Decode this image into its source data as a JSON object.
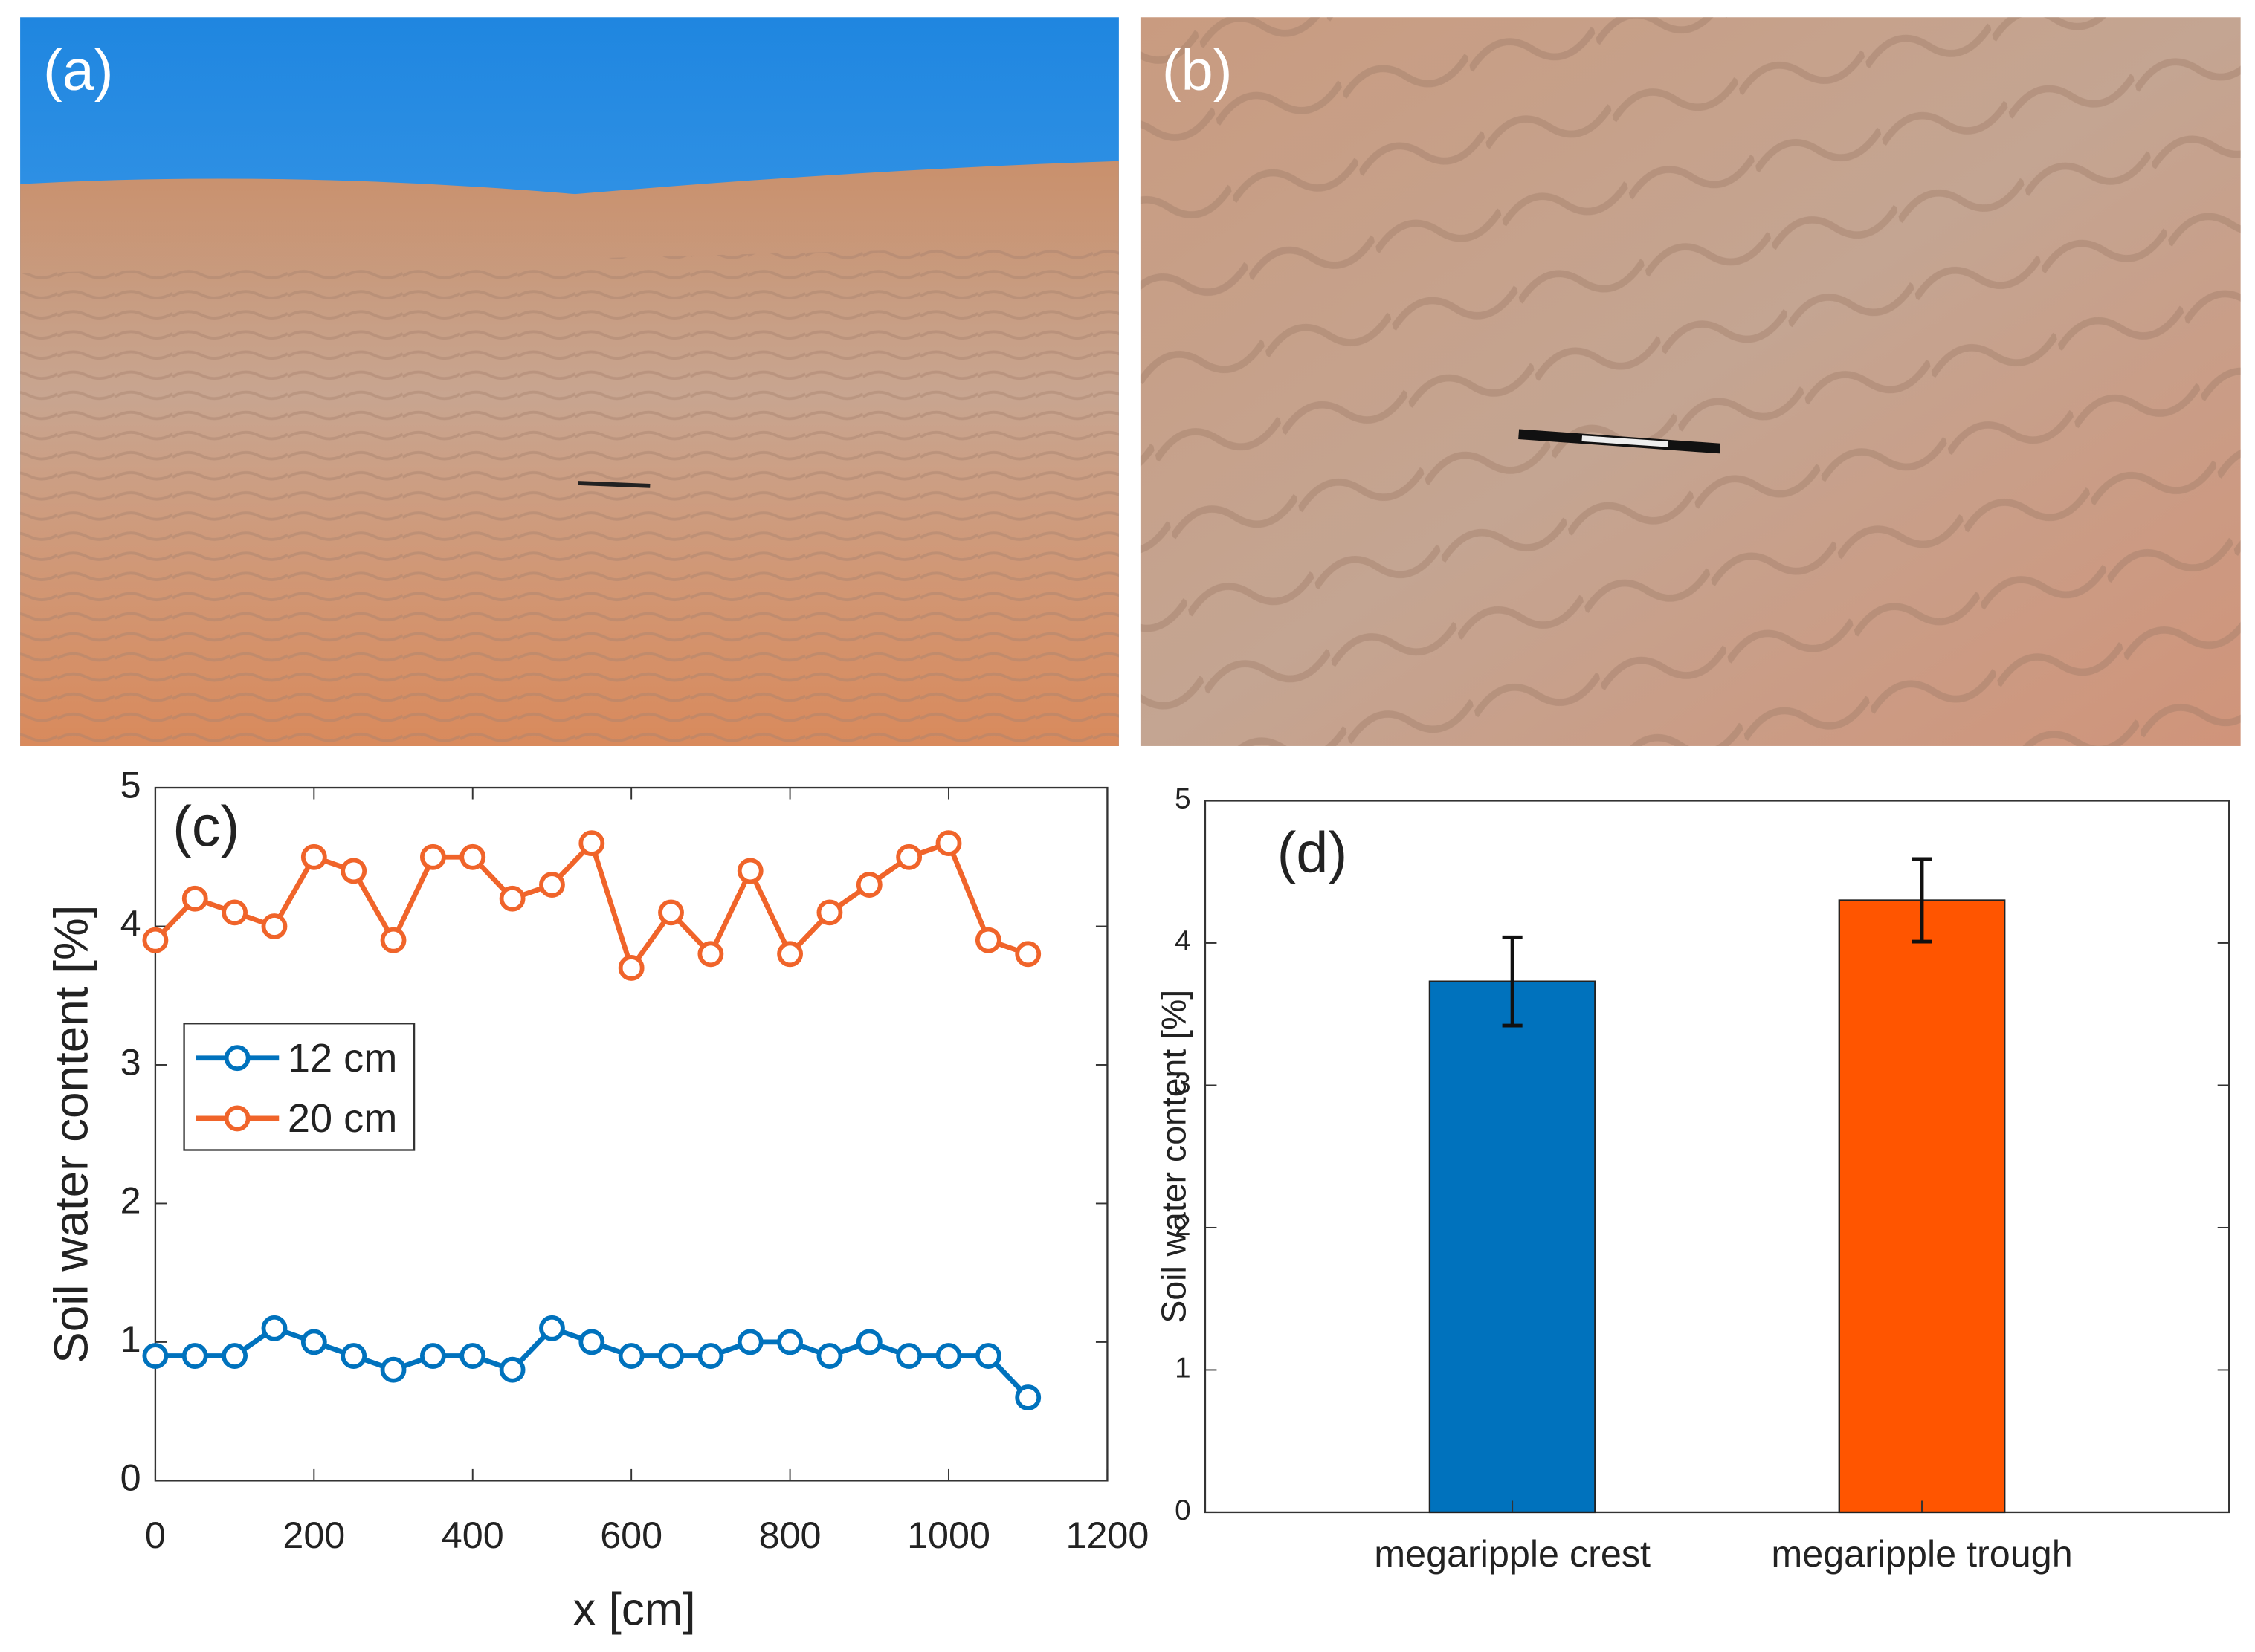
{
  "photos": [
    {
      "label": "(a)"
    },
    {
      "label": "(b)"
    }
  ],
  "chart_data": [
    {
      "type": "line",
      "panel_label": "(c)",
      "x_label": "x [cm]",
      "y_label": "Soil water content [%]",
      "x": [
        0,
        50,
        100,
        150,
        200,
        250,
        300,
        350,
        400,
        450,
        500,
        550,
        600,
        650,
        700,
        750,
        800,
        850,
        900,
        950,
        1000,
        1050,
        1100
      ],
      "series": [
        {
          "name": "12 cm",
          "color": "#0072bd",
          "values": [
            0.9,
            0.9,
            0.9,
            1.1,
            1.0,
            0.9,
            0.8,
            0.9,
            0.9,
            0.8,
            1.1,
            1.0,
            0.9,
            0.9,
            0.9,
            1.0,
            1.0,
            0.9,
            1.0,
            0.9,
            0.9,
            0.9,
            0.6
          ]
        },
        {
          "name": "20 cm",
          "color": "#f0642a",
          "values": [
            3.9,
            4.2,
            4.1,
            4.0,
            4.5,
            4.4,
            3.9,
            4.5,
            4.5,
            4.2,
            4.3,
            4.6,
            3.7,
            4.1,
            3.8,
            4.4,
            3.8,
            4.1,
            4.3,
            4.5,
            4.6,
            3.9,
            3.8
          ]
        }
      ],
      "xlim": [
        0,
        1200
      ],
      "xticks": [
        0,
        200,
        400,
        600,
        800,
        1000,
        1200
      ],
      "ylim": [
        0,
        5
      ],
      "yticks": [
        0,
        1,
        2,
        3,
        4,
        5
      ],
      "grid": false,
      "legend": "upper left"
    },
    {
      "type": "bar",
      "panel_label": "(d)",
      "y_label": "Soil water content [%]",
      "categories": [
        "megaripple crest",
        "megaripple trough"
      ],
      "values": [
        3.73,
        4.3
      ],
      "errors": [
        0.31,
        0.29
      ],
      "colors": [
        "#0072bd",
        "#ff5500"
      ],
      "ylim": [
        0,
        5
      ],
      "yticks": [
        0,
        1,
        2,
        3,
        4,
        5
      ],
      "grid": false
    }
  ]
}
